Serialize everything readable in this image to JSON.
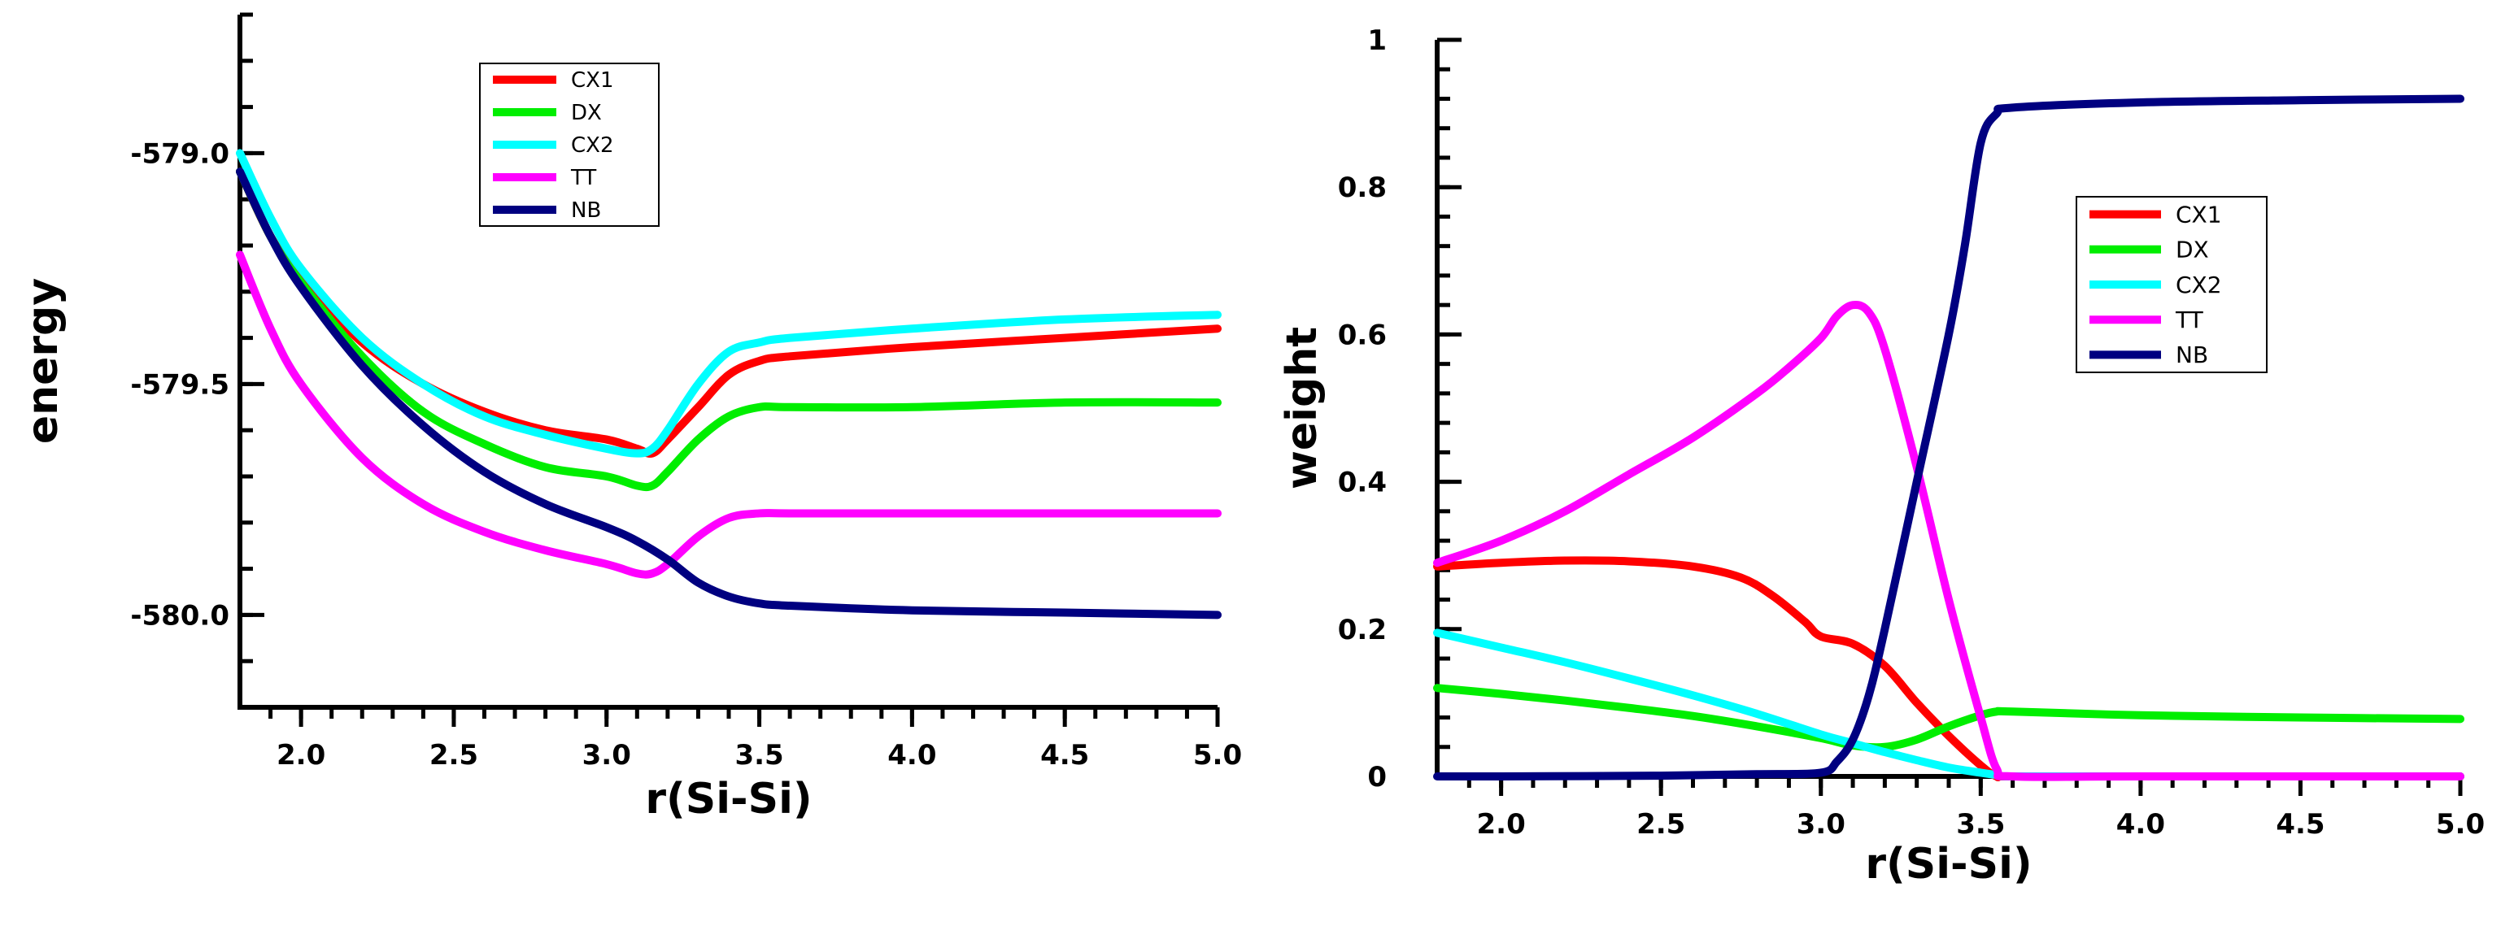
{
  "chart_data": [
    {
      "type": "line",
      "xlabel": "r(Si-Si)",
      "ylabel": "energy",
      "xlim": [
        1.8,
        5.0
      ],
      "ylim": [
        -580.2,
        -578.7
      ],
      "xticks": [
        2.0,
        2.5,
        3.0,
        3.5,
        4.0,
        4.5,
        5.0
      ],
      "xtick_labels": [
        "2.0",
        "2.5",
        "3.0",
        "3.5",
        "4.0",
        "4.5",
        "5.0"
      ],
      "yticks": [
        -579.0,
        -579.5,
        -580.0
      ],
      "ytick_labels": [
        "-579.0",
        "-579.5",
        "-580.0"
      ],
      "legend_position": "top-center",
      "series": [
        {
          "name": "CX1",
          "color": "#ff0000",
          "x": [
            1.8,
            1.9,
            2.0,
            2.2,
            2.4,
            2.6,
            2.8,
            3.0,
            3.1,
            3.15,
            3.2,
            3.3,
            3.4,
            3.5,
            3.6,
            4.0,
            4.5,
            5.0
          ],
          "y": [
            -579.04,
            -579.18,
            -579.27,
            -579.41,
            -579.5,
            -579.56,
            -579.6,
            -579.62,
            -579.64,
            -579.65,
            -579.62,
            -579.55,
            -579.48,
            -579.45,
            -579.44,
            -579.42,
            -579.4,
            -579.38
          ]
        },
        {
          "name": "DX",
          "color": "#00ee00",
          "x": [
            1.8,
            1.9,
            2.0,
            2.2,
            2.4,
            2.6,
            2.8,
            3.0,
            3.1,
            3.15,
            3.2,
            3.3,
            3.4,
            3.5,
            3.6,
            4.0,
            4.5,
            5.0
          ],
          "y": [
            -579.04,
            -579.18,
            -579.28,
            -579.44,
            -579.56,
            -579.63,
            -579.68,
            -579.7,
            -579.72,
            -579.72,
            -579.69,
            -579.62,
            -579.57,
            -579.55,
            -579.55,
            -579.55,
            -579.54,
            -579.54
          ]
        },
        {
          "name": "CX2",
          "color": "#00ffff",
          "x": [
            1.8,
            1.9,
            2.0,
            2.2,
            2.4,
            2.6,
            2.8,
            3.0,
            3.1,
            3.15,
            3.2,
            3.3,
            3.4,
            3.5,
            3.6,
            4.0,
            4.5,
            5.0
          ],
          "y": [
            -579.0,
            -579.14,
            -579.25,
            -579.4,
            -579.5,
            -579.57,
            -579.61,
            -579.64,
            -579.65,
            -579.64,
            -579.6,
            -579.5,
            -579.43,
            -579.41,
            -579.4,
            -579.38,
            -579.36,
            -579.35
          ]
        },
        {
          "name": "TT",
          "color": "#ff00ff",
          "x": [
            1.8,
            1.9,
            2.0,
            2.2,
            2.4,
            2.6,
            2.8,
            3.0,
            3.1,
            3.15,
            3.2,
            3.3,
            3.4,
            3.5,
            3.6,
            4.0,
            4.5,
            5.0
          ],
          "y": [
            -579.22,
            -579.38,
            -579.5,
            -579.66,
            -579.76,
            -579.82,
            -579.86,
            -579.89,
            -579.91,
            -579.91,
            -579.89,
            -579.83,
            -579.79,
            -579.78,
            -579.78,
            -579.78,
            -579.78,
            -579.78
          ]
        },
        {
          "name": "NB",
          "color": "#000080",
          "x": [
            1.8,
            1.9,
            2.0,
            2.2,
            2.4,
            2.6,
            2.8,
            3.0,
            3.1,
            3.2,
            3.3,
            3.4,
            3.5,
            3.6,
            4.0,
            4.5,
            5.0
          ],
          "y": [
            -579.04,
            -579.18,
            -579.29,
            -579.46,
            -579.59,
            -579.69,
            -579.76,
            -579.81,
            -579.84,
            -579.88,
            -579.93,
            -579.96,
            -579.975,
            -579.98,
            -579.99,
            -579.995,
            -580.0
          ]
        }
      ]
    },
    {
      "type": "line",
      "xlabel": "r(Si-Si)",
      "ylabel": "weight",
      "xlim": [
        1.8,
        5.0
      ],
      "ylim": [
        0,
        1.0
      ],
      "xticks": [
        2.0,
        2.5,
        3.0,
        3.5,
        4.0,
        4.5,
        5.0
      ],
      "xtick_labels": [
        "2.0",
        "2.5",
        "3.0",
        "3.5",
        "4.0",
        "4.5",
        "5.0"
      ],
      "yticks": [
        0,
        0.2,
        0.4,
        0.6,
        0.8,
        1.0
      ],
      "ytick_labels": [
        "0",
        "0.2",
        "0.4",
        "0.6",
        "0.8",
        "1"
      ],
      "legend_position": "upper-right",
      "series": [
        {
          "name": "CX1",
          "color": "#ff0000",
          "x": [
            1.8,
            2.0,
            2.2,
            2.4,
            2.6,
            2.75,
            2.85,
            2.95,
            3.0,
            3.1,
            3.2,
            3.3,
            3.4,
            3.5,
            3.55,
            3.6,
            4.0,
            5.0
          ],
          "y": [
            0.285,
            0.29,
            0.293,
            0.292,
            0.285,
            0.27,
            0.245,
            0.21,
            0.19,
            0.18,
            0.15,
            0.1,
            0.055,
            0.015,
            0.0,
            0.0,
            0.0,
            0.0
          ]
        },
        {
          "name": "DX",
          "color": "#00ee00",
          "x": [
            1.8,
            2.0,
            2.2,
            2.4,
            2.6,
            2.8,
            3.0,
            3.1,
            3.2,
            3.3,
            3.4,
            3.5,
            3.55,
            3.6,
            4.0,
            4.5,
            5.0
          ],
          "y": [
            0.12,
            0.112,
            0.103,
            0.093,
            0.082,
            0.068,
            0.052,
            0.042,
            0.04,
            0.05,
            0.068,
            0.083,
            0.088,
            0.088,
            0.083,
            0.08,
            0.078
          ]
        },
        {
          "name": "CX2",
          "color": "#00ffff",
          "x": [
            1.8,
            2.0,
            2.2,
            2.4,
            2.6,
            2.8,
            3.0,
            3.1,
            3.2,
            3.3,
            3.4,
            3.5,
            3.55,
            3.6,
            4.0,
            5.0
          ],
          "y": [
            0.195,
            0.175,
            0.155,
            0.133,
            0.11,
            0.085,
            0.057,
            0.045,
            0.033,
            0.022,
            0.012,
            0.005,
            0.002,
            0.0,
            0.0,
            0.0
          ]
        },
        {
          "name": "TT",
          "color": "#ff00ff",
          "x": [
            1.8,
            2.0,
            2.2,
            2.4,
            2.6,
            2.8,
            2.9,
            3.0,
            3.05,
            3.1,
            3.15,
            3.2,
            3.3,
            3.4,
            3.5,
            3.55,
            3.6,
            4.0,
            5.0
          ],
          "y": [
            0.29,
            0.32,
            0.36,
            0.41,
            0.46,
            0.52,
            0.555,
            0.595,
            0.625,
            0.64,
            0.63,
            0.58,
            0.42,
            0.24,
            0.08,
            0.01,
            0.0,
            0.0,
            0.0
          ]
        },
        {
          "name": "NB",
          "color": "#000080",
          "x": [
            1.8,
            2.0,
            2.5,
            2.8,
            3.0,
            3.05,
            3.1,
            3.15,
            3.2,
            3.3,
            3.4,
            3.45,
            3.5,
            3.55,
            3.6,
            4.0,
            4.5,
            5.0
          ],
          "y": [
            0.0,
            0.0,
            0.001,
            0.003,
            0.005,
            0.02,
            0.05,
            0.11,
            0.2,
            0.4,
            0.6,
            0.72,
            0.86,
            0.9,
            0.908,
            0.915,
            0.918,
            0.92
          ]
        }
      ]
    }
  ]
}
